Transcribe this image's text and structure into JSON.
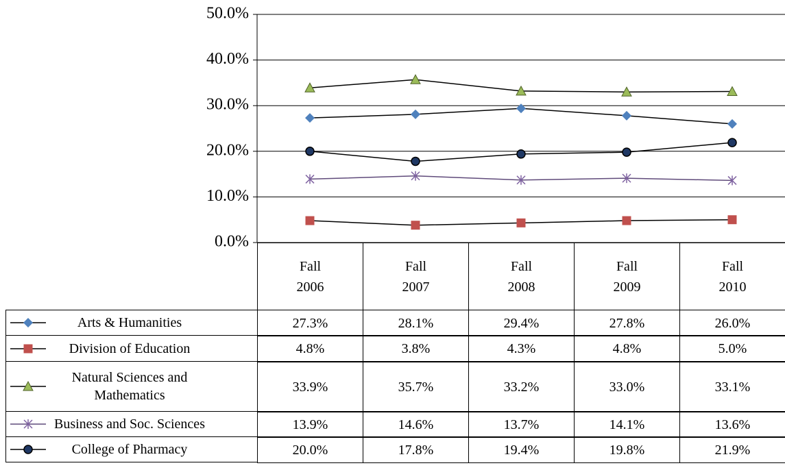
{
  "chart_data": {
    "type": "line",
    "categories": [
      "Fall 2006",
      "Fall 2007",
      "Fall 2008",
      "Fall 2009",
      "Fall 2010"
    ],
    "series": [
      {
        "name": "Arts & Humanities",
        "color": "#4f81bd",
        "marker": "diamond",
        "line_color": "#000000",
        "values": [
          27.3,
          28.1,
          29.4,
          27.8,
          26.0
        ],
        "value_labels": [
          "27.3%",
          "28.1%",
          "29.4%",
          "27.8%",
          "26.0%"
        ]
      },
      {
        "name": "Division of Education",
        "color": "#c0504d",
        "marker": "square",
        "line_color": "#000000",
        "values": [
          4.8,
          3.8,
          4.3,
          4.8,
          5.0
        ],
        "value_labels": [
          "4.8%",
          "3.8%",
          "4.3%",
          "4.8%",
          "5.0%"
        ]
      },
      {
        "name": "Natural Sciences and Mathematics",
        "color": "#9bbb59",
        "marker": "triangle",
        "line_color": "#000000",
        "values": [
          33.9,
          35.7,
          33.2,
          33.0,
          33.1
        ],
        "value_labels": [
          "33.9%",
          "35.7%",
          "33.2%",
          "33.0%",
          "33.1%"
        ]
      },
      {
        "name": "Business and Soc. Sciences",
        "color": "#8064a2",
        "marker": "star",
        "line_color": "#5f4a7a",
        "values": [
          13.9,
          14.6,
          13.7,
          14.1,
          13.6
        ],
        "value_labels": [
          "13.9%",
          "14.6%",
          "13.7%",
          "14.1%",
          "13.6%"
        ]
      },
      {
        "name": "College of Pharmacy",
        "color": "#1f3864",
        "marker": "circle",
        "line_color": "#000000",
        "values": [
          20.0,
          17.8,
          19.4,
          19.8,
          21.9
        ],
        "value_labels": [
          "20.0%",
          "17.8%",
          "19.4%",
          "19.8%",
          "21.9%"
        ]
      }
    ],
    "ylim": [
      0,
      50
    ],
    "yticks": [
      {
        "value": 0,
        "label": "0.0%"
      },
      {
        "value": 10,
        "label": "10.0%"
      },
      {
        "value": 20,
        "label": "20.0%"
      },
      {
        "value": 30,
        "label": "30.0%"
      },
      {
        "value": 40,
        "label": "40.0%"
      },
      {
        "value": 50,
        "label": "50.0%"
      }
    ],
    "grid": true
  }
}
